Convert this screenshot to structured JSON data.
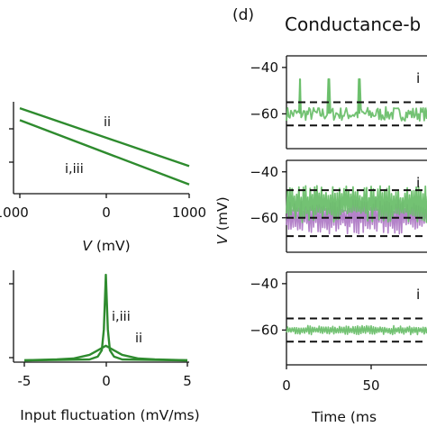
{
  "panel_label": "(d)",
  "title": "Conductance-b",
  "ylabel_right": "V (mV)",
  "chart_data": [
    {
      "type": "line",
      "id": "left-top",
      "xlabel": "V (mV)",
      "xlabel_var": "V",
      "xlabel_unit": " (mV)",
      "xlim": [
        -1000,
        1000
      ],
      "xticks": [
        -1000,
        0,
        1000
      ],
      "ylim": [
        0,
        1
      ],
      "series": [
        {
          "label": "ii",
          "color": "#2e8b2e",
          "x": [
            -1000,
            1000
          ],
          "y": [
            0.93,
            0.3
          ]
        },
        {
          "label": "i,iii",
          "color": "#2e8b2e",
          "x": [
            -1000,
            1000
          ],
          "y": [
            0.8,
            0.1
          ]
        }
      ],
      "annotations": [
        {
          "text": "ii"
        },
        {
          "text": "i,iii"
        }
      ]
    },
    {
      "type": "line",
      "id": "left-bottom",
      "xlabel": "Input fluctuation (mV/ms)",
      "xlim": [
        -5,
        5
      ],
      "xticks": [
        -5,
        0,
        5
      ],
      "ylim": [
        0,
        1
      ],
      "series": [
        {
          "label": "i,iii",
          "color": "#2e8b2e",
          "x": [
            -5,
            -1,
            -0.5,
            -0.25,
            -0.12,
            0,
            0.12,
            0.25,
            0.5,
            1,
            5
          ],
          "y": [
            0.01,
            0.02,
            0.05,
            0.12,
            0.35,
            0.95,
            0.35,
            0.12,
            0.05,
            0.02,
            0.01
          ]
        },
        {
          "label": "ii",
          "color": "#2e8b2e",
          "x": [
            -5,
            -3,
            -2,
            -1,
            -0.5,
            0,
            0.5,
            1,
            2,
            3,
            5
          ],
          "y": [
            0.01,
            0.02,
            0.03,
            0.07,
            0.12,
            0.17,
            0.12,
            0.07,
            0.03,
            0.02,
            0.01
          ]
        }
      ],
      "annotations": [
        {
          "text": "i,iii"
        },
        {
          "text": "ii"
        }
      ]
    },
    {
      "type": "line",
      "id": "trace-i",
      "label": "i",
      "ylim": [
        -75,
        -35
      ],
      "yticks": [
        -40,
        -60
      ],
      "xlim": [
        0,
        100
      ],
      "dashed_levels": [
        -55,
        -65
      ],
      "series": [
        {
          "color": "#6cbf6c",
          "baseline": -60,
          "spikes_at": [
            8,
            25,
            43
          ],
          "spike_peak": -45
        }
      ]
    },
    {
      "type": "line",
      "id": "trace-ii",
      "label": "i",
      "ylim": [
        -75,
        -35
      ],
      "yticks": [
        -40,
        -60
      ],
      "xlim": [
        0,
        100
      ],
      "dashed_levels": [
        -48,
        -60,
        -68
      ],
      "series": [
        {
          "color": "#b07cc6",
          "baseline": -60,
          "band": [
            -67,
            -52
          ]
        },
        {
          "color": "#6cbf6c",
          "baseline": -55,
          "band": [
            -62,
            -46
          ]
        }
      ]
    },
    {
      "type": "line",
      "id": "trace-iii",
      "label": "i",
      "xlabel": "Time (ms",
      "ylim": [
        -75,
        -35
      ],
      "yticks": [
        -40,
        -60
      ],
      "xlim": [
        0,
        100
      ],
      "xticks": [
        0,
        50
      ],
      "dashed_levels": [
        -55,
        -65
      ],
      "series": [
        {
          "color": "#6cbf6c",
          "baseline": -60,
          "band": [
            -62,
            -58
          ]
        }
      ]
    }
  ]
}
